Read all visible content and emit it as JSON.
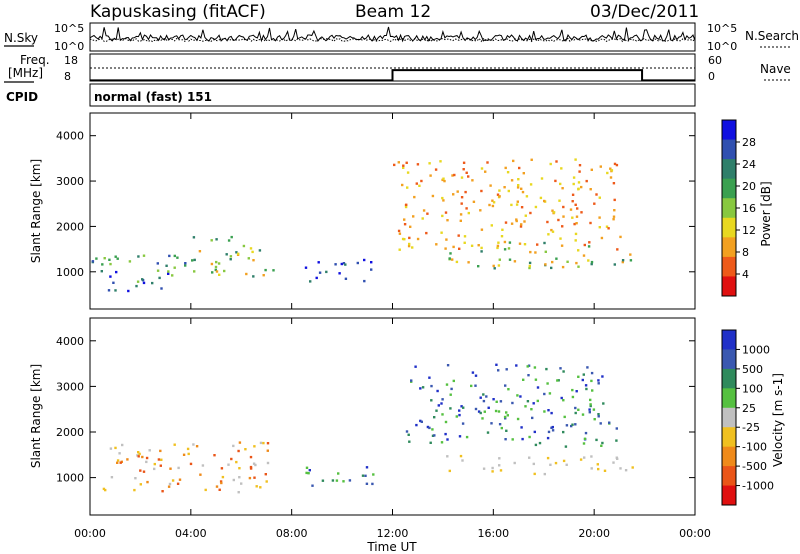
{
  "header": {
    "station": "Kapuskasing (fitACF)",
    "beam": "Beam 12",
    "date": "03/Dec/2011"
  },
  "strip": {
    "nsky_label": "N.Sky",
    "nsky_ticks": [
      "10^5",
      "10^0"
    ],
    "nsearch_label": "N.Search",
    "nsearch_ticks": [
      "10^5",
      "10^0"
    ],
    "freq_label": [
      "Freq.",
      "[MHz]"
    ],
    "freq_ticks": [
      "18",
      "8"
    ],
    "nave_label": "Nave",
    "nave_ticks": [
      "60",
      "0"
    ],
    "cpid_label": "CPID",
    "cpid_value": "normal (fast) 151"
  },
  "chart_data": [
    {
      "type": "heatmap",
      "panel": "power",
      "ylabel": "Slant Range [km]",
      "yticks": [
        "4000",
        "3000",
        "2000",
        "1000"
      ],
      "ylim": [
        180,
        4500
      ],
      "xlim_hours": [
        0,
        24
      ],
      "colorbar": {
        "label": "Power [dB]",
        "ticks": [
          "28",
          "24",
          "20",
          "16",
          "12",
          "8",
          "4"
        ],
        "range": [
          0,
          30
        ],
        "colors": [
          "#1010e0",
          "#3050b0",
          "#2f7f6a",
          "#3aa050",
          "#88c840",
          "#e8d820",
          "#f2a020",
          "#ee5a1a",
          "#e01010"
        ]
      },
      "scatter_regions": [
        {
          "t": [
            0,
            4
          ],
          "r": [
            700,
            1400
          ],
          "level": "high"
        },
        {
          "t": [
            0.5,
            3
          ],
          "r": [
            600,
            900
          ],
          "level": "very-high"
        },
        {
          "t": [
            4,
            7.5
          ],
          "r": [
            900,
            1800
          ],
          "level": "medium"
        },
        {
          "t": [
            8.5,
            11.5
          ],
          "r": [
            800,
            1300
          ],
          "level": "very-high"
        },
        {
          "t": [
            14,
            21.5
          ],
          "r": [
            1100,
            1700
          ],
          "level": "medium"
        },
        {
          "t": [
            12,
            21
          ],
          "r": [
            1500,
            3500
          ],
          "level": "low"
        }
      ]
    },
    {
      "type": "heatmap",
      "panel": "velocity",
      "ylabel": "Slant Range [km]",
      "yticks": [
        "4000",
        "3000",
        "2000",
        "1000"
      ],
      "ylim": [
        180,
        4500
      ],
      "xlim_hours": [
        0,
        24
      ],
      "xlabel": "Time UT",
      "xticks": [
        "00:00",
        "04:00",
        "08:00",
        "12:00",
        "16:00",
        "20:00",
        "00:00"
      ],
      "colorbar": {
        "label": "Velocity [m s-1]",
        "ticks": [
          "1000",
          "500",
          "100",
          "25",
          "-25",
          "-100",
          "-500",
          "-1000"
        ],
        "range": [
          -1000,
          1000
        ],
        "colors": [
          "#2030c8",
          "#3a58b0",
          "#2f8a5c",
          "#55c040",
          "#c0c0c0",
          "#f0c020",
          "#ef8a1a",
          "#ea5518",
          "#e01010"
        ]
      },
      "scatter_regions": [
        {
          "t": [
            0.5,
            7.5
          ],
          "r": [
            700,
            1800
          ],
          "level": "toward"
        },
        {
          "t": [
            8.5,
            11.5
          ],
          "r": [
            800,
            1300
          ],
          "level": "away"
        },
        {
          "t": [
            14,
            21.5
          ],
          "r": [
            1100,
            1500
          ],
          "level": "ground"
        },
        {
          "t": [
            12.5,
            21
          ],
          "r": [
            1700,
            3500
          ],
          "level": "away"
        }
      ]
    }
  ]
}
